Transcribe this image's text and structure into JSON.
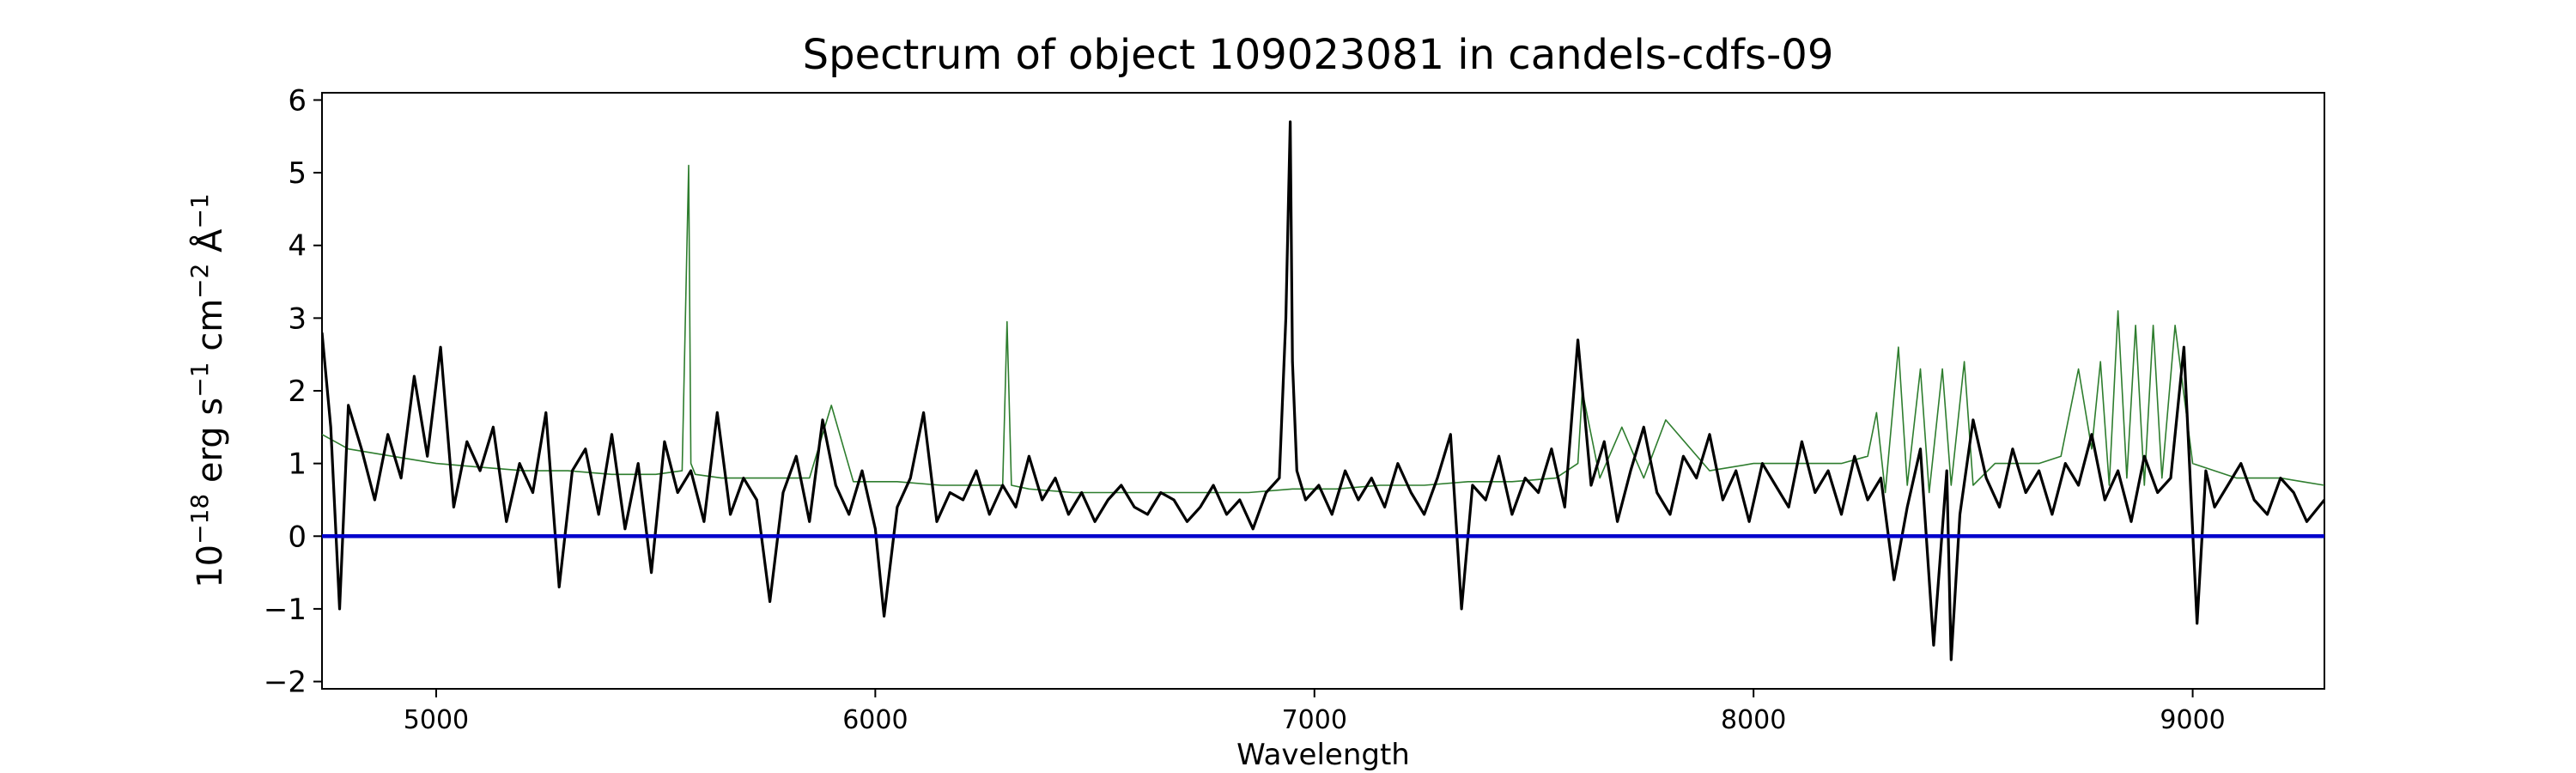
{
  "chart_data": {
    "type": "line",
    "title": "Spectrum of object 109023081 in candels-cdfs-09",
    "xlabel": "Wavelength",
    "ylabel": {
      "base": "10",
      "exponent": "−18",
      "unit": " erg s",
      "s_exp": "−1",
      "cm": " cm",
      "cm_exp": "−2",
      "angstrom": " Å",
      "a_exp": "−1"
    },
    "xlim": [
      4740,
      9300
    ],
    "ylim": [
      -2.1,
      6.1
    ],
    "xticks": [
      5000,
      6000,
      7000,
      8000,
      9000
    ],
    "yticks": [
      -2,
      -1,
      0,
      1,
      2,
      3,
      4,
      5,
      6
    ],
    "xtick_labels": [
      "5000",
      "6000",
      "7000",
      "8000",
      "9000"
    ],
    "ytick_labels": [
      "−2",
      "−1",
      "0",
      "1",
      "2",
      "3",
      "4",
      "5",
      "6"
    ],
    "grid": false,
    "series": [
      {
        "role": "flux",
        "color": "#000000",
        "x": [
          4740,
          4760,
          4780,
          4800,
          4830,
          4860,
          4890,
          4920,
          4950,
          4980,
          5010,
          5040,
          5070,
          5100,
          5130,
          5160,
          5190,
          5220,
          5250,
          5280,
          5310,
          5340,
          5370,
          5400,
          5430,
          5460,
          5490,
          5520,
          5550,
          5580,
          5610,
          5640,
          5670,
          5700,
          5730,
          5760,
          5790,
          5820,
          5850,
          5880,
          5910,
          5940,
          5970,
          6000,
          6020,
          6050,
          6080,
          6110,
          6140,
          6170,
          6200,
          6230,
          6260,
          6290,
          6320,
          6350,
          6380,
          6410,
          6440,
          6470,
          6500,
          6530,
          6560,
          6590,
          6620,
          6650,
          6680,
          6710,
          6740,
          6770,
          6800,
          6830,
          6860,
          6890,
          6920,
          6935,
          6945,
          6950,
          6960,
          6980,
          7010,
          7040,
          7070,
          7100,
          7130,
          7160,
          7190,
          7220,
          7250,
          7280,
          7310,
          7335,
          7360,
          7390,
          7420,
          7450,
          7480,
          7510,
          7540,
          7570,
          7600,
          7630,
          7660,
          7690,
          7720,
          7750,
          7780,
          7810,
          7840,
          7870,
          7900,
          7930,
          7960,
          7990,
          8020,
          8050,
          8080,
          8110,
          8140,
          8170,
          8200,
          8230,
          8260,
          8290,
          8320,
          8350,
          8380,
          8410,
          8440,
          8450,
          8470,
          8500,
          8530,
          8560,
          8590,
          8620,
          8650,
          8680,
          8710,
          8740,
          8770,
          8800,
          8830,
          8860,
          8890,
          8920,
          8950,
          8980,
          9010,
          9030,
          9050,
          9080,
          9110,
          9140,
          9170,
          9200,
          9230,
          9260,
          9300
        ],
        "y": [
          2.8,
          1.5,
          -1.0,
          1.8,
          1.2,
          0.5,
          1.4,
          0.8,
          2.2,
          1.1,
          2.6,
          0.4,
          1.3,
          0.9,
          1.5,
          0.2,
          1.0,
          0.6,
          1.7,
          -0.7,
          0.9,
          1.2,
          0.3,
          1.4,
          0.1,
          1.0,
          -0.5,
          1.3,
          0.6,
          0.9,
          0.2,
          1.7,
          0.3,
          0.8,
          0.5,
          -0.9,
          0.6,
          1.1,
          0.2,
          1.6,
          0.7,
          0.3,
          0.9,
          0.1,
          -1.1,
          0.4,
          0.8,
          1.7,
          0.2,
          0.6,
          0.5,
          0.9,
          0.3,
          0.7,
          0.4,
          1.1,
          0.5,
          0.8,
          0.3,
          0.6,
          0.2,
          0.5,
          0.7,
          0.4,
          0.3,
          0.6,
          0.5,
          0.2,
          0.4,
          0.7,
          0.3,
          0.5,
          0.1,
          0.6,
          0.8,
          3.0,
          5.7,
          2.4,
          0.9,
          0.5,
          0.7,
          0.3,
          0.9,
          0.5,
          0.8,
          0.4,
          1.0,
          0.6,
          0.3,
          0.8,
          1.4,
          -1.0,
          0.7,
          0.5,
          1.1,
          0.3,
          0.8,
          0.6,
          1.2,
          0.4,
          2.7,
          0.7,
          1.3,
          0.2,
          0.9,
          1.5,
          0.6,
          0.3,
          1.1,
          0.8,
          1.4,
          0.5,
          0.9,
          0.2,
          1.0,
          0.7,
          0.4,
          1.3,
          0.6,
          0.9,
          0.3,
          1.1,
          0.5,
          0.8,
          -0.6,
          0.4,
          1.2,
          -1.5,
          0.9,
          -1.7,
          0.3,
          1.6,
          0.8,
          0.4,
          1.2,
          0.6,
          0.9,
          0.3,
          1.0,
          0.7,
          1.4,
          0.5,
          0.9,
          0.2,
          1.1,
          0.6,
          0.8,
          2.6,
          -1.2,
          0.9,
          0.4,
          0.7,
          1.0,
          0.5,
          0.3,
          0.8,
          0.6,
          0.2,
          0.5
        ]
      },
      {
        "role": "model",
        "color": "#2e7d2e",
        "x": [
          4740,
          4800,
          4900,
          5000,
          5100,
          5200,
          5300,
          5400,
          5500,
          5560,
          5575,
          5580,
          5590,
          5650,
          5750,
          5850,
          5900,
          5950,
          6050,
          6150,
          6250,
          6290,
          6300,
          6310,
          6350,
          6450,
          6550,
          6650,
          6750,
          6850,
          6950,
          7050,
          7150,
          7250,
          7350,
          7450,
          7550,
          7600,
          7610,
          7650,
          7700,
          7750,
          7800,
          7900,
          8000,
          8100,
          8200,
          8260,
          8280,
          8300,
          8330,
          8350,
          8380,
          8400,
          8430,
          8450,
          8480,
          8500,
          8550,
          8600,
          8650,
          8700,
          8740,
          8770,
          8790,
          8810,
          8830,
          8850,
          8870,
          8890,
          8910,
          8930,
          8960,
          9000,
          9050,
          9100,
          9150,
          9200,
          9250,
          9300
        ],
        "y": [
          1.4,
          1.2,
          1.1,
          1.0,
          0.95,
          0.9,
          0.9,
          0.85,
          0.85,
          0.9,
          5.1,
          1.0,
          0.85,
          0.8,
          0.8,
          0.8,
          1.8,
          0.75,
          0.75,
          0.7,
          0.7,
          0.7,
          2.95,
          0.7,
          0.65,
          0.6,
          0.6,
          0.6,
          0.6,
          0.6,
          0.65,
          0.65,
          0.7,
          0.7,
          0.75,
          0.75,
          0.8,
          1.0,
          2.0,
          0.8,
          1.5,
          0.8,
          1.6,
          0.9,
          1.0,
          1.0,
          1.0,
          1.1,
          1.7,
          0.6,
          2.6,
          0.7,
          2.3,
          0.6,
          2.3,
          0.7,
          2.4,
          0.7,
          1.0,
          1.0,
          1.0,
          1.1,
          2.3,
          1.2,
          2.4,
          0.7,
          3.1,
          0.8,
          2.9,
          0.7,
          2.9,
          0.8,
          2.9,
          1.0,
          0.9,
          0.8,
          0.8,
          0.8,
          0.75,
          0.7
        ]
      },
      {
        "role": "zero-line",
        "color": "#0000cc",
        "x": [
          4740,
          9300
        ],
        "y": [
          0,
          0
        ]
      }
    ]
  }
}
